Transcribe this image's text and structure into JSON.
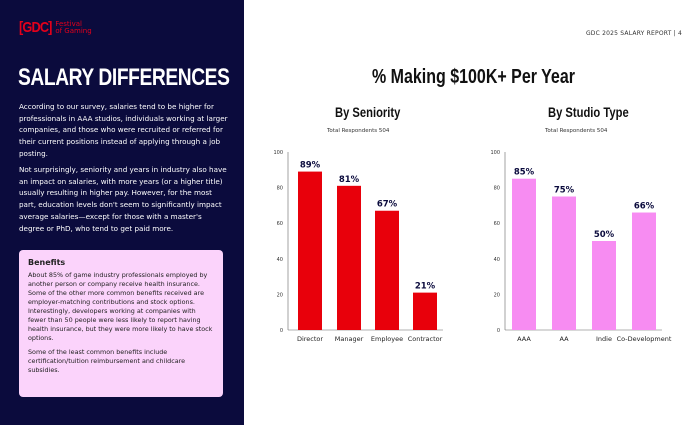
{
  "logo": {
    "mark": "[GDC]",
    "text_line1": "Festival",
    "text_line2": "of Gaming"
  },
  "left": {
    "title": "SALARY DIFFERENCES",
    "para1": "According to our survey, salaries tend to be higher for professionals in AAA studios, individuals working at larger companies, and those who were recruited or referred for their current positions instead of applying through a job posting.",
    "para2": "Not surprisingly, seniority and years in industry also have an impact on salaries, with more years (or a higher title) usually resulting in higher pay. However, for the most part, education levels don't seem to significantly impact average salaries—except for those with a master's degree or PhD, who tend to get paid more.",
    "benefits": {
      "title": "Benefits",
      "p1": "About 85% of game industry professionals employed by another person or company receive health insurance. Some of the other more common benefits received are employer-matching contributions and stock options. Interestingly, developers working at companies with fewer than 50 people were less likely to report having health insurance, but they were more likely to have stock options.",
      "p2": "Some of the least common benefits include certification/tuition reimbursement and childcare subsidies."
    }
  },
  "header": "GDC 2025 SALARY REPORT  |  4",
  "main_title": "% Making $100K+ Per Year",
  "chart_data": [
    {
      "type": "bar",
      "title": "By Seniority",
      "subtitle": "Total Respondents 504",
      "categories": [
        "Director",
        "Manager",
        "Employee",
        "Contractor"
      ],
      "values": [
        89,
        81,
        67,
        21
      ],
      "labels": [
        "89%",
        "81%",
        "67%",
        "21%"
      ],
      "ylim": [
        0,
        100
      ],
      "yticks": [
        0,
        20,
        40,
        60,
        80,
        100
      ],
      "color": "#e8000b",
      "grid": false
    },
    {
      "type": "bar",
      "title": "By Studio Type",
      "subtitle": "Total Respondents 504",
      "categories": [
        "AAA",
        "AA",
        "Indie",
        "Co-Development"
      ],
      "values": [
        85,
        75,
        50,
        66
      ],
      "labels": [
        "85%",
        "75%",
        "50%",
        "66%"
      ],
      "ylim": [
        0,
        100
      ],
      "yticks": [
        0,
        20,
        40,
        60,
        80,
        100
      ],
      "color": "#f78cf2",
      "grid": false
    }
  ]
}
